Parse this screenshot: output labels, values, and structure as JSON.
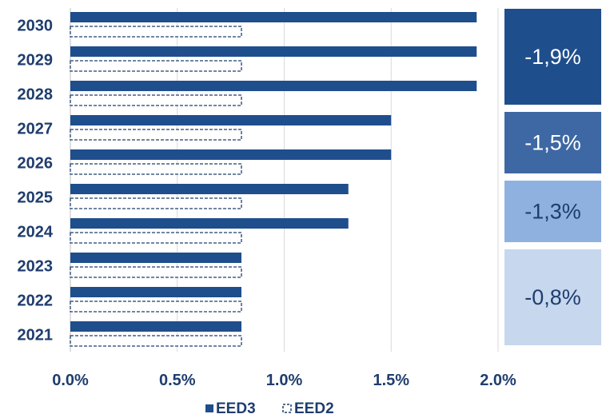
{
  "chart_data": {
    "type": "bar",
    "orientation": "horizontal",
    "categories": [
      "2030",
      "2029",
      "2028",
      "2027",
      "2026",
      "2025",
      "2024",
      "2023",
      "2022",
      "2021"
    ],
    "series": [
      {
        "name": "EED3",
        "values": [
          1.9,
          1.9,
          1.9,
          1.5,
          1.5,
          1.3,
          1.3,
          0.8,
          0.8,
          0.8
        ],
        "color": "#1f4e8c",
        "style": "solid"
      },
      {
        "name": "EED2",
        "values": [
          0.8,
          0.8,
          0.8,
          0.8,
          0.8,
          0.8,
          0.8,
          0.8,
          0.8,
          0.8
        ],
        "color": "#1f3d6e",
        "style": "dashed-outline"
      }
    ],
    "xlim": [
      0,
      2.0
    ],
    "xticks": [
      0,
      0.5,
      1.0,
      1.5,
      2.0
    ],
    "xtick_labels": [
      "0.0%",
      "0.5%",
      "1.0%",
      "1.5%",
      "2.0%"
    ],
    "grid": "vertical",
    "legend": "bottom",
    "annotations": [
      {
        "text": "-1,9%",
        "years": [
          "2030",
          "2029",
          "2028"
        ],
        "bg": "#1f4e8c",
        "fg": "#ffffff"
      },
      {
        "text": "-1,5%",
        "years": [
          "2027",
          "2026"
        ],
        "bg": "#3e68a3",
        "fg": "#ffffff"
      },
      {
        "text": "-1,3%",
        "years": [
          "2025",
          "2024"
        ],
        "bg": "#8eb1e0",
        "fg": "#1f3d6e"
      },
      {
        "text": "-0,8%",
        "years": [
          "2023",
          "2022",
          "2021"
        ],
        "bg": "#c6d7ee",
        "fg": "#1f3d6e"
      }
    ]
  }
}
